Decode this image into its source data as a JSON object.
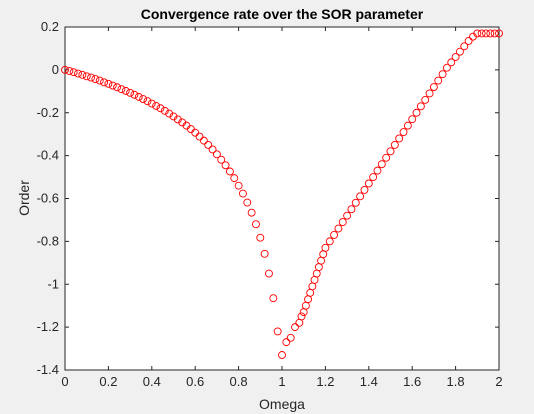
{
  "chart_data": {
    "type": "scatter",
    "title": "Convergence rate over the SOR parameter",
    "xlabel": "Omega",
    "ylabel": "Order",
    "xlim": [
      0,
      2
    ],
    "ylim": [
      -1.4,
      0.2
    ],
    "xticks": [
      "0",
      "0.2",
      "0.4",
      "0.6",
      "0.8",
      "1",
      "1.2",
      "1.4",
      "1.6",
      "1.8",
      "2"
    ],
    "yticks": [
      "0.2",
      "0",
      "-0.2",
      "-0.4",
      "-0.6",
      "-0.8",
      "-1",
      "-1.2",
      "-1.4"
    ],
    "grid": false,
    "marker": "circle-open",
    "color": "#ff0000",
    "series": [
      {
        "x": [
          0.0,
          0.02,
          0.04,
          0.06,
          0.08,
          0.1,
          0.12,
          0.14,
          0.16,
          0.18,
          0.2,
          0.22,
          0.24,
          0.26,
          0.28,
          0.3,
          0.32,
          0.34,
          0.36,
          0.38,
          0.4,
          0.42,
          0.44,
          0.46,
          0.48,
          0.5,
          0.52,
          0.54,
          0.56,
          0.58,
          0.6,
          0.62,
          0.64,
          0.66,
          0.68,
          0.7,
          0.72,
          0.74,
          0.76,
          0.78,
          0.8,
          0.82,
          0.84,
          0.86,
          0.88,
          0.9,
          0.92,
          0.94,
          0.96,
          0.98,
          1.0,
          1.02,
          1.04,
          1.06,
          1.08,
          1.09,
          1.1,
          1.11,
          1.12,
          1.13,
          1.14,
          1.15,
          1.16,
          1.17,
          1.18,
          1.19,
          1.2,
          1.22,
          1.24,
          1.26,
          1.28,
          1.3,
          1.32,
          1.34,
          1.36,
          1.38,
          1.4,
          1.42,
          1.44,
          1.46,
          1.48,
          1.5,
          1.52,
          1.54,
          1.56,
          1.58,
          1.6,
          1.62,
          1.64,
          1.66,
          1.68,
          1.7,
          1.72,
          1.74,
          1.76,
          1.78,
          1.8,
          1.82,
          1.84,
          1.86,
          1.88,
          1.9,
          1.92,
          1.94,
          1.96,
          1.98,
          2.0
        ],
        "y": [
          0.0,
          -0.005,
          -0.011,
          -0.017,
          -0.023,
          -0.03,
          -0.036,
          -0.043,
          -0.05,
          -0.058,
          -0.065,
          -0.073,
          -0.081,
          -0.09,
          -0.098,
          -0.107,
          -0.116,
          -0.126,
          -0.136,
          -0.146,
          -0.157,
          -0.168,
          -0.179,
          -0.191,
          -0.204,
          -0.217,
          -0.231,
          -0.245,
          -0.26,
          -0.276,
          -0.293,
          -0.311,
          -0.33,
          -0.35,
          -0.371,
          -0.394,
          -0.419,
          -0.445,
          -0.474,
          -0.505,
          -0.54,
          -0.577,
          -0.619,
          -0.666,
          -0.72,
          -0.783,
          -0.858,
          -0.95,
          -1.065,
          -1.22,
          -1.33,
          -1.27,
          -1.25,
          -1.2,
          -1.18,
          -1.15,
          -1.13,
          -1.1,
          -1.07,
          -1.04,
          -1.01,
          -0.98,
          -0.95,
          -0.92,
          -0.89,
          -0.86,
          -0.83,
          -0.8,
          -0.77,
          -0.74,
          -0.71,
          -0.68,
          -0.65,
          -0.62,
          -0.59,
          -0.56,
          -0.53,
          -0.5,
          -0.47,
          -0.44,
          -0.41,
          -0.38,
          -0.35,
          -0.32,
          -0.29,
          -0.26,
          -0.23,
          -0.2,
          -0.17,
          -0.14,
          -0.11,
          -0.08,
          -0.05,
          -0.02,
          0.01,
          0.035,
          0.06,
          0.085,
          0.11,
          0.135,
          0.155,
          0.17,
          0.17,
          0.17,
          0.17,
          0.17,
          0.17
        ]
      }
    ]
  }
}
